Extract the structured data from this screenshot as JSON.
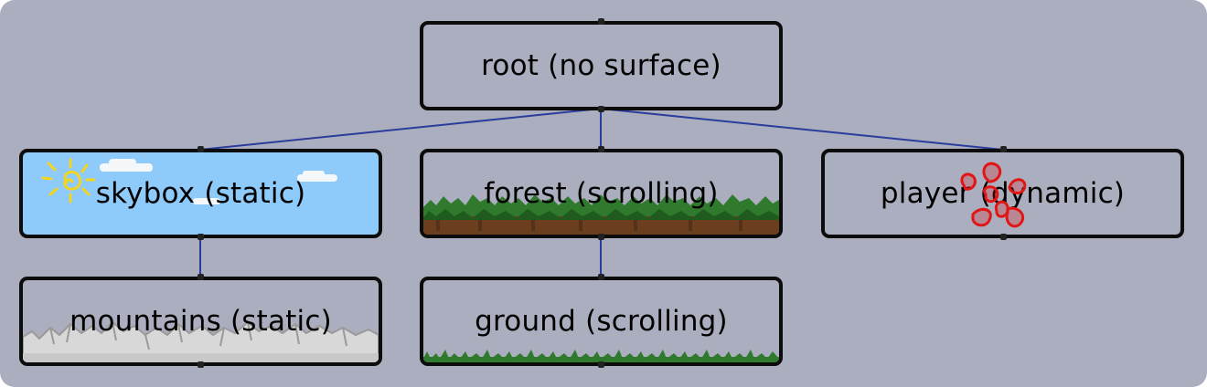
{
  "diagram": {
    "background": "#abaebe",
    "edge_color": "#2b3d9c",
    "nodes": [
      {
        "id": "root",
        "label": "root (no surface)",
        "decoration": "none"
      },
      {
        "id": "skybox",
        "label": "skybox (static)",
        "decoration": "sky-with-sun-and-clouds"
      },
      {
        "id": "forest",
        "label": "forest (scrolling)",
        "decoration": "tree-line-and-soil"
      },
      {
        "id": "player",
        "label": "player (dynamic)",
        "decoration": "red-sprite"
      },
      {
        "id": "mountains",
        "label": "mountains (static)",
        "decoration": "grey-mountain-range"
      },
      {
        "id": "ground",
        "label": "ground (scrolling)",
        "decoration": "grass-strip"
      }
    ],
    "edges": [
      {
        "from": "root",
        "to": "skybox"
      },
      {
        "from": "root",
        "to": "forest"
      },
      {
        "from": "root",
        "to": "player"
      },
      {
        "from": "skybox",
        "to": "mountains"
      },
      {
        "from": "forest",
        "to": "ground"
      }
    ]
  }
}
